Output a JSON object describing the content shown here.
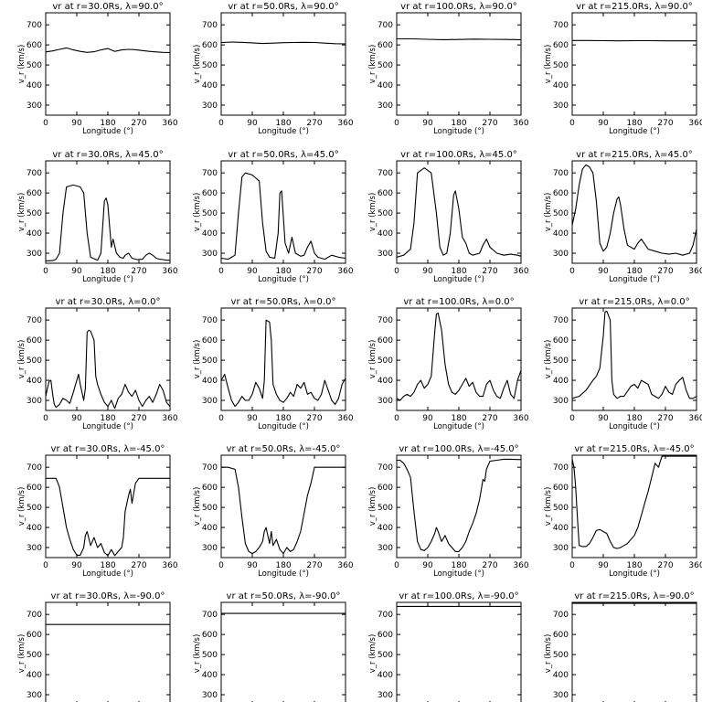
{
  "figure": {
    "xlabel": "Longitude (°)",
    "ylabel": "v_r (km/s)",
    "xlim": [
      0,
      360
    ],
    "ylim": [
      250,
      760
    ],
    "xticks": [
      0,
      90,
      180,
      270,
      360
    ],
    "yticks": [
      300,
      400,
      500,
      600,
      700
    ],
    "line_color": "#000000",
    "background": "#ffffff"
  },
  "chart_data": [
    {
      "type": "line",
      "title": "vr at r=30.0Rs, λ=90.0°",
      "row": 0,
      "col": 0,
      "x": [
        0,
        20,
        40,
        60,
        80,
        100,
        120,
        140,
        160,
        180,
        200,
        220,
        240,
        260,
        280,
        300,
        320,
        340,
        360
      ],
      "y": [
        565,
        570,
        578,
        585,
        575,
        568,
        563,
        566,
        575,
        582,
        568,
        575,
        578,
        576,
        572,
        568,
        565,
        563,
        562
      ]
    },
    {
      "type": "line",
      "title": "vr at r=50.0Rs, λ=90.0°",
      "row": 0,
      "col": 1,
      "x": [
        0,
        30,
        60,
        90,
        120,
        150,
        180,
        210,
        240,
        270,
        300,
        330,
        360
      ],
      "y": [
        612,
        614,
        613,
        610,
        607,
        609,
        611,
        612,
        613,
        612,
        609,
        606,
        605
      ]
    },
    {
      "type": "line",
      "title": "vr at r=100.0Rs, λ=90.0°",
      "row": 0,
      "col": 2,
      "x": [
        0,
        45,
        90,
        135,
        180,
        225,
        270,
        315,
        360
      ],
      "y": [
        630,
        630,
        628,
        626,
        627,
        629,
        628,
        627,
        626
      ]
    },
    {
      "type": "line",
      "title": "vr at r=215.0Rs, λ=90.0°",
      "row": 0,
      "col": 3,
      "x": [
        0,
        45,
        90,
        135,
        180,
        225,
        270,
        315,
        360
      ],
      "y": [
        622,
        622,
        621,
        620,
        621,
        621,
        620,
        620,
        620
      ]
    },
    {
      "type": "line",
      "title": "vr at r=30.0Rs, λ=45.0°",
      "row": 1,
      "col": 0,
      "x": [
        0,
        20,
        30,
        40,
        50,
        60,
        80,
        100,
        110,
        120,
        130,
        150,
        160,
        170,
        175,
        180,
        190,
        195,
        205,
        215,
        225,
        230,
        240,
        250,
        265,
        280,
        290,
        300,
        310,
        320,
        330,
        340,
        350,
        360
      ],
      "y": [
        262,
        263,
        270,
        300,
        500,
        630,
        640,
        630,
        600,
        400,
        280,
        265,
        300,
        560,
        575,
        540,
        330,
        370,
        300,
        280,
        275,
        290,
        300,
        275,
        268,
        270,
        290,
        300,
        290,
        275,
        270,
        268,
        265,
        265
      ]
    },
    {
      "type": "line",
      "title": "vr at r=50.0Rs, λ=45.0°",
      "row": 1,
      "col": 1,
      "x": [
        0,
        20,
        40,
        50,
        60,
        70,
        90,
        110,
        120,
        130,
        140,
        155,
        165,
        170,
        175,
        185,
        195,
        205,
        215,
        230,
        240,
        250,
        260,
        270,
        280,
        300,
        320,
        340,
        360
      ],
      "y": [
        275,
        270,
        290,
        500,
        680,
        700,
        690,
        660,
        450,
        310,
        280,
        275,
        400,
        600,
        610,
        350,
        300,
        380,
        300,
        285,
        290,
        330,
        360,
        300,
        280,
        270,
        290,
        280,
        275
      ]
    },
    {
      "type": "line",
      "title": "vr at r=100.0Rs, λ=45.0°",
      "row": 1,
      "col": 2,
      "x": [
        0,
        20,
        40,
        50,
        60,
        80,
        100,
        115,
        125,
        135,
        145,
        155,
        165,
        170,
        180,
        190,
        200,
        210,
        220,
        240,
        250,
        260,
        270,
        290,
        310,
        330,
        350,
        360
      ],
      "y": [
        280,
        290,
        320,
        450,
        700,
        725,
        700,
        500,
        330,
        290,
        300,
        400,
        590,
        610,
        520,
        380,
        350,
        300,
        290,
        300,
        340,
        370,
        330,
        300,
        290,
        295,
        290,
        285
      ]
    },
    {
      "type": "line",
      "title": "vr at r=215.0Rs, λ=45.0°",
      "row": 1,
      "col": 3,
      "x": [
        0,
        10,
        20,
        30,
        40,
        50,
        60,
        70,
        80,
        90,
        100,
        110,
        120,
        130,
        135,
        140,
        150,
        160,
        180,
        190,
        200,
        220,
        240,
        260,
        280,
        300,
        320,
        340,
        350,
        360
      ],
      "y": [
        440,
        520,
        640,
        720,
        740,
        730,
        700,
        560,
        350,
        310,
        330,
        400,
        500,
        570,
        580,
        540,
        420,
        340,
        320,
        350,
        370,
        320,
        310,
        300,
        295,
        300,
        290,
        300,
        340,
        420
      ]
    },
    {
      "type": "line",
      "title": "vr at r=30.0Rs, λ=0.0°",
      "row": 2,
      "col": 0,
      "x": [
        0,
        5,
        10,
        15,
        20,
        25,
        30,
        40,
        50,
        60,
        70,
        80,
        90,
        95,
        100,
        110,
        115,
        120,
        125,
        130,
        140,
        145,
        150,
        160,
        170,
        180,
        190,
        200,
        210,
        220,
        230,
        240,
        250,
        260,
        270,
        280,
        290,
        300,
        310,
        320,
        330,
        340,
        350,
        360
      ],
      "y": [
        320,
        360,
        395,
        400,
        330,
        280,
        265,
        280,
        310,
        300,
        285,
        340,
        400,
        430,
        380,
        300,
        360,
        640,
        650,
        645,
        600,
        420,
        380,
        330,
        290,
        270,
        300,
        260,
        310,
        330,
        380,
        340,
        320,
        350,
        300,
        270,
        300,
        320,
        290,
        330,
        380,
        350,
        290,
        270
      ]
    },
    {
      "type": "line",
      "title": "vr at r=50.0Rs, λ=0.0°",
      "row": 2,
      "col": 1,
      "x": [
        0,
        10,
        20,
        30,
        40,
        50,
        60,
        70,
        80,
        90,
        100,
        110,
        120,
        125,
        130,
        140,
        145,
        150,
        160,
        170,
        180,
        190,
        200,
        210,
        220,
        230,
        240,
        250,
        260,
        270,
        280,
        290,
        300,
        310,
        320,
        330,
        340,
        350,
        360
      ],
      "y": [
        400,
        430,
        360,
        300,
        270,
        290,
        320,
        300,
        300,
        330,
        390,
        360,
        310,
        400,
        700,
        690,
        600,
        380,
        330,
        300,
        290,
        310,
        340,
        320,
        380,
        360,
        390,
        330,
        340,
        310,
        300,
        330,
        400,
        350,
        300,
        280,
        310,
        380,
        410
      ]
    },
    {
      "type": "line",
      "title": "vr at r=100.0Rs, λ=0.0°",
      "row": 2,
      "col": 2,
      "x": [
        0,
        10,
        20,
        30,
        40,
        50,
        60,
        70,
        80,
        90,
        100,
        110,
        115,
        120,
        130,
        140,
        150,
        160,
        170,
        180,
        190,
        200,
        210,
        220,
        230,
        240,
        250,
        260,
        270,
        280,
        290,
        300,
        310,
        320,
        330,
        340,
        350,
        360
      ],
      "y": [
        310,
        300,
        320,
        330,
        320,
        340,
        380,
        400,
        360,
        380,
        420,
        640,
        730,
        735,
        650,
        480,
        380,
        340,
        330,
        350,
        380,
        410,
        370,
        390,
        340,
        320,
        320,
        380,
        400,
        350,
        320,
        310,
        360,
        400,
        330,
        310,
        400,
        450
      ]
    },
    {
      "type": "line",
      "title": "vr at r=215.0Rs, λ=0.0°",
      "row": 2,
      "col": 3,
      "x": [
        0,
        20,
        40,
        60,
        70,
        80,
        90,
        95,
        100,
        110,
        115,
        120,
        130,
        140,
        150,
        170,
        180,
        190,
        200,
        220,
        230,
        240,
        250,
        260,
        270,
        280,
        290,
        300,
        310,
        320,
        330,
        340,
        350,
        360
      ],
      "y": [
        310,
        320,
        350,
        400,
        420,
        460,
        620,
        740,
        745,
        700,
        400,
        330,
        310,
        320,
        320,
        370,
        380,
        360,
        400,
        380,
        330,
        320,
        310,
        330,
        370,
        340,
        330,
        380,
        400,
        415,
        350,
        310,
        310,
        320
      ]
    },
    {
      "type": "line",
      "title": "vr at r=30.0Rs, λ=-45.0°",
      "row": 3,
      "col": 0,
      "x": [
        0,
        20,
        30,
        40,
        50,
        60,
        70,
        80,
        90,
        100,
        110,
        115,
        120,
        130,
        140,
        150,
        160,
        170,
        180,
        190,
        200,
        210,
        220,
        225,
        230,
        240,
        245,
        250,
        260,
        270,
        290,
        310,
        330,
        360
      ],
      "y": [
        645,
        645,
        645,
        600,
        500,
        400,
        340,
        290,
        262,
        262,
        300,
        360,
        380,
        310,
        350,
        300,
        320,
        275,
        260,
        290,
        260,
        280,
        300,
        350,
        480,
        560,
        590,
        520,
        620,
        645,
        645,
        645,
        645,
        645
      ]
    },
    {
      "type": "line",
      "title": "vr at r=50.0Rs, λ=-45.0°",
      "row": 3,
      "col": 1,
      "x": [
        0,
        20,
        40,
        50,
        60,
        70,
        80,
        90,
        100,
        110,
        120,
        125,
        130,
        140,
        145,
        150,
        160,
        170,
        180,
        190,
        200,
        210,
        220,
        230,
        240,
        250,
        260,
        270,
        290,
        310,
        330,
        360
      ],
      "y": [
        700,
        700,
        690,
        600,
        450,
        320,
        280,
        270,
        280,
        300,
        330,
        380,
        400,
        320,
        380,
        310,
        340,
        290,
        270,
        300,
        280,
        290,
        330,
        380,
        470,
        560,
        620,
        700,
        700,
        700,
        700,
        700
      ]
    },
    {
      "type": "line",
      "title": "vr at r=100.0Rs, λ=-45.0°",
      "row": 3,
      "col": 2,
      "x": [
        0,
        10,
        20,
        30,
        40,
        50,
        60,
        70,
        80,
        90,
        100,
        110,
        115,
        120,
        130,
        140,
        150,
        160,
        170,
        180,
        190,
        200,
        210,
        220,
        230,
        240,
        250,
        255,
        260,
        270,
        290,
        310,
        330,
        360
      ],
      "y": [
        735,
        735,
        720,
        690,
        650,
        480,
        330,
        290,
        285,
        300,
        330,
        370,
        400,
        380,
        330,
        360,
        320,
        300,
        280,
        280,
        300,
        330,
        380,
        420,
        470,
        540,
        640,
        630,
        690,
        730,
        735,
        740,
        740,
        738
      ]
    },
    {
      "type": "line",
      "title": "vr at r=215.0Rs, λ=-45.0°",
      "row": 3,
      "col": 3,
      "x": [
        0,
        5,
        10,
        15,
        20,
        30,
        40,
        50,
        60,
        70,
        80,
        90,
        100,
        110,
        120,
        130,
        140,
        150,
        160,
        170,
        180,
        190,
        200,
        210,
        220,
        230,
        240,
        250,
        260,
        280,
        300,
        320,
        340,
        360
      ],
      "y": [
        740,
        700,
        600,
        450,
        310,
        305,
        305,
        320,
        350,
        385,
        390,
        380,
        370,
        330,
        300,
        295,
        300,
        310,
        320,
        340,
        360,
        400,
        460,
        520,
        580,
        650,
        720,
        700,
        755,
        755,
        755,
        755,
        755,
        755
      ]
    },
    {
      "type": "line",
      "title": "vr at r=30.0Rs, λ=-90.0°",
      "row": 4,
      "col": 0,
      "x": [
        0,
        360
      ],
      "y": [
        650,
        650
      ]
    },
    {
      "type": "line",
      "title": "vr at r=50.0Rs, λ=-90.0°",
      "row": 4,
      "col": 1,
      "x": [
        0,
        360
      ],
      "y": [
        705,
        705
      ]
    },
    {
      "type": "line",
      "title": "vr at r=100.0Rs, λ=-90.0°",
      "row": 4,
      "col": 2,
      "x": [
        0,
        360
      ],
      "y": [
        740,
        740
      ]
    },
    {
      "type": "line",
      "title": "vr at r=215.0Rs, λ=-90.0°",
      "row": 4,
      "col": 3,
      "x": [
        0,
        360
      ],
      "y": [
        755,
        755
      ]
    }
  ]
}
